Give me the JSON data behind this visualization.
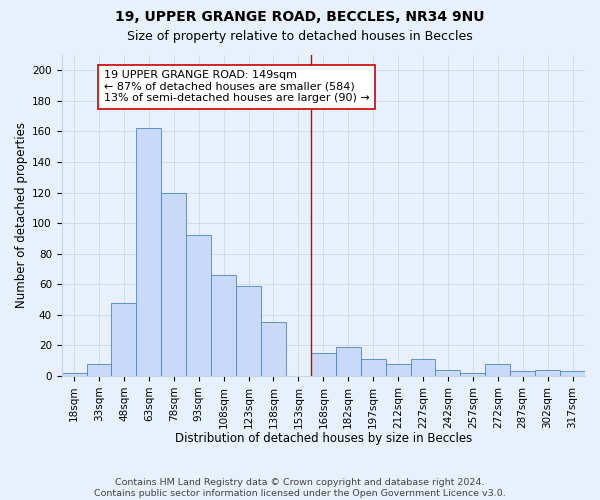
{
  "title1": "19, UPPER GRANGE ROAD, BECCLES, NR34 9NU",
  "title2": "Size of property relative to detached houses in Beccles",
  "xlabel": "Distribution of detached houses by size in Beccles",
  "ylabel": "Number of detached properties",
  "footnote1": "Contains HM Land Registry data © Crown copyright and database right 2024.",
  "footnote2": "Contains public sector information licensed under the Open Government Licence v3.0.",
  "bar_labels": [
    "18sqm",
    "33sqm",
    "48sqm",
    "63sqm",
    "78sqm",
    "93sqm",
    "108sqm",
    "123sqm",
    "138sqm",
    "153sqm",
    "168sqm",
    "182sqm",
    "197sqm",
    "212sqm",
    "227sqm",
    "242sqm",
    "257sqm",
    "272sqm",
    "287sqm",
    "302sqm",
    "317sqm"
  ],
  "bar_values": [
    2,
    8,
    48,
    162,
    120,
    92,
    66,
    59,
    35,
    0,
    15,
    19,
    11,
    8,
    11,
    4,
    2,
    8,
    3,
    4,
    3
  ],
  "bar_color": "#c9daf8",
  "bar_edge_color": "#4a86c8",
  "grid_color": "#c8d4e8",
  "annotation_text": "19 UPPER GRANGE ROAD: 149sqm\n← 87% of detached houses are smaller (584)\n13% of semi-detached houses are larger (90) →",
  "annotation_box_color": "#ffffff",
  "annotation_box_edge": "#cc0000",
  "vline_x": 9.5,
  "vline_color": "#cc0000",
  "ylim": [
    0,
    210
  ],
  "yticks": [
    0,
    20,
    40,
    60,
    80,
    100,
    120,
    140,
    160,
    180,
    200
  ],
  "bg_color": "#e8f0fb",
  "title1_fontsize": 10,
  "title2_fontsize": 9,
  "xlabel_fontsize": 8.5,
  "ylabel_fontsize": 8.5,
  "tick_fontsize": 7.5,
  "footnote_fontsize": 6.8,
  "annotation_fontsize": 8
}
